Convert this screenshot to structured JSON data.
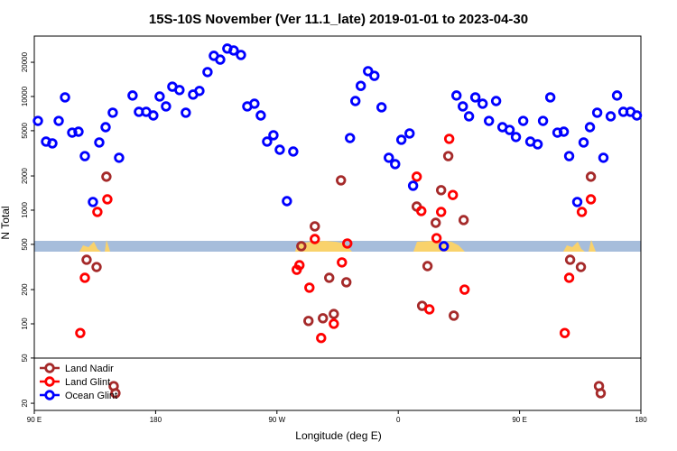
{
  "chart_data": {
    "type": "scatter",
    "title": "15S-10S November (Ver 11.1_late)   2019-01-01 to 2023-04-30",
    "x_label": "Longitude (deg E)",
    "y_label": "N Total",
    "log_y": true,
    "legend": "lower left",
    "xlim": [
      90,
      540
    ],
    "ylim": [
      17.3,
      34000
    ],
    "xticks": [
      {
        "value": 90,
        "label": "90 E"
      },
      180,
      {
        "value": 270,
        "label": "90 W"
      },
      {
        "value": 360,
        "label": "0"
      },
      {
        "value": 450,
        "label": "90 E"
      },
      {
        "value": 540,
        "label": "180"
      }
    ],
    "yticks": [
      20,
      50,
      100,
      200,
      500,
      1000,
      2000,
      5000,
      10000,
      20000
    ],
    "series": [
      {
        "name": "Land Nadir",
        "color": "#a52a2a",
        "x": [
          128.8,
          136.2,
          143.5,
          288.1,
          293.4,
          298.1,
          304.1,
          308.8,
          312.2,
          317.5,
          321.5,
          373.7,
          381.7,
          377.7,
          387.8,
          391.8,
          397.1,
          401.2,
          408.5,
          487.5,
          495.5,
          502.9,
          148.9,
          150.2,
          508.9,
          510.2
        ],
        "values": [
          366,
          316,
          1970,
          482,
          106,
          720,
          112,
          254,
          122,
          1830,
          232,
          1076,
          322,
          144,
          774,
          1500,
          2990,
          118,
          818,
          366,
          316,
          1970,
          28.3,
          24.5,
          28.3,
          24.5
        ]
      },
      {
        "name": "Land Glint",
        "color": "#ff0000",
        "x": [
          124.1,
          127.5,
          136.8,
          144.2,
          284.7,
          286.7,
          294.1,
          298.1,
          302.8,
          312.2,
          318.2,
          322.2,
          373.7,
          377.1,
          383.1,
          388.4,
          391.8,
          397.8,
          400.5,
          409.2,
          483.5,
          486.8,
          496.2,
          502.9
        ],
        "values": [
          83,
          254,
          964,
          1245,
          299,
          328,
          208,
          557,
          75,
          100,
          347,
          509,
          1970,
          982,
          134,
          567,
          964,
          4240,
          1360,
          200,
          83,
          254,
          964,
          1245
        ]
      },
      {
        "name": "Ocean Glint",
        "color": "#0000ff",
        "x": [
          92.7,
          98.7,
          103.4,
          108.1,
          112.8,
          118.1,
          122.8,
          127.5,
          133.5,
          138.2,
          142.9,
          148.2,
          152.9,
          162.9,
          167.6,
          173.0,
          178.3,
          183.0,
          187.7,
          192.4,
          197.7,
          202.4,
          207.8,
          212.5,
          218.5,
          223.2,
          227.9,
          233.2,
          237.9,
          243.3,
          248.0,
          253.3,
          258.0,
          262.7,
          267.4,
          272.1,
          277.4,
          282.1,
          324.2,
          328.2,
          332.2,
          337.6,
          342.3,
          347.6,
          353.0,
          357.7,
          362.3,
          368.4,
          371.0,
          393.8,
          403.2,
          407.9,
          412.5,
          417.2,
          422.6,
          427.3,
          432.6,
          437.3,
          442.6,
          447.3,
          452.7,
          458.0,
          463.4,
          467.4,
          472.8,
          478.1,
          482.8,
          486.8,
          492.8,
          497.5,
          502.2,
          507.6,
          512.2,
          517.6,
          522.3,
          527.0,
          532.3,
          537.0
        ],
        "values": [
          6100,
          4010,
          3870,
          6100,
          9820,
          4810,
          4900,
          2990,
          1180,
          3940,
          5370,
          7200,
          2890,
          10200,
          7330,
          7330,
          6810,
          10000,
          8180,
          12200,
          11400,
          7200,
          10400,
          11200,
          16400,
          22800,
          21100,
          26400,
          25400,
          23200,
          8180,
          8640,
          6810,
          4010,
          4560,
          3400,
          1200,
          3280,
          4310,
          9120,
          12400,
          16700,
          15200,
          8030,
          2890,
          2540,
          4160,
          4730,
          1640,
          482,
          10200,
          8180,
          6690,
          9820,
          8640,
          6100,
          9120,
          5370,
          5080,
          4400,
          6100,
          4010,
          3800,
          6100,
          9820,
          4810,
          4900,
          2990,
          1180,
          3940,
          5370,
          7200,
          2890,
          6690,
          10200,
          7330,
          7330,
          6810
        ]
      }
    ]
  }
}
